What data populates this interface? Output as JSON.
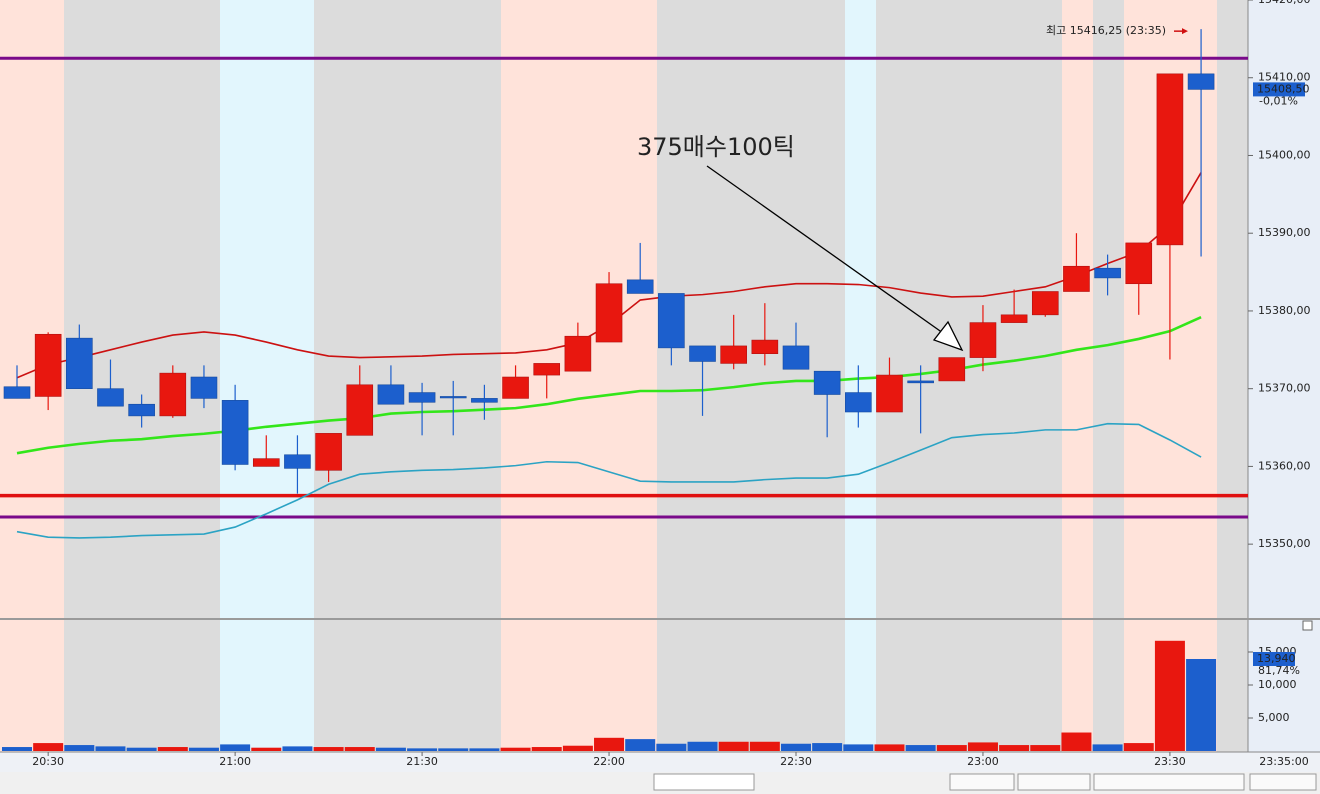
{
  "chart_data": [
    {
      "type": "candlestick",
      "categories": [
        null,
        "20:30",
        null,
        null,
        null,
        null,
        null,
        "21:00",
        null,
        null,
        null,
        null,
        null,
        "21:30",
        null,
        null,
        null,
        null,
        null,
        "22:00",
        null,
        null,
        null,
        null,
        null,
        "22:30",
        null,
        null,
        null,
        null,
        null,
        "23:00",
        null,
        null,
        null,
        null,
        null,
        "23:30",
        null
      ],
      "axis_end_label": "23:35:00",
      "open": [
        15370.25,
        15369,
        15376.5,
        15370,
        15368,
        15366.5,
        15371.5,
        15368.5,
        15360,
        15361.5,
        15359.5,
        15364,
        15370.5,
        15369.5,
        15369,
        15368.75,
        15368.75,
        15371.75,
        15372.25,
        15376,
        15384,
        15382.25,
        15375.5,
        15373.25,
        15374.5,
        15375.5,
        15372.25,
        15369.5,
        15367,
        15371,
        15371,
        15374,
        15378.5,
        15379.5,
        15382.5,
        15385.5,
        15383.5,
        15388.5,
        15410.5
      ],
      "high": [
        15373,
        15377.25,
        15378.25,
        15373.75,
        15369.25,
        15373,
        15373,
        15370.5,
        15364,
        15364,
        15364.25,
        15373,
        15373,
        15370.75,
        15371,
        15370.5,
        15373,
        15373.25,
        15378.5,
        15385,
        15388.75,
        15382.25,
        15375.5,
        15379.5,
        15381,
        15378.5,
        15372.25,
        15373,
        15374,
        15373,
        15374,
        15380.75,
        15382.75,
        15382.5,
        15390,
        15387.25,
        15388.75,
        15410.5,
        15416.25
      ],
      "low": [
        15368.75,
        15367.25,
        15370,
        15367.75,
        15365,
        15366.25,
        15367.5,
        15359.5,
        15360,
        15356.5,
        15358,
        15364,
        15368,
        15364,
        15364,
        15366,
        15368.75,
        15368.75,
        15372.25,
        15376,
        15382.25,
        15373,
        15366.5,
        15372.5,
        15373,
        15372.5,
        15363.75,
        15365,
        15367,
        15364.25,
        15371,
        15372.25,
        15378.5,
        15379.25,
        15382.5,
        15382,
        15379.5,
        15373.75,
        15387
      ],
      "close": [
        15368.75,
        15377,
        15370,
        15367.75,
        15366.5,
        15372,
        15368.75,
        15360.25,
        15361,
        15359.75,
        15364.25,
        15370.5,
        15368,
        15368.25,
        15369,
        15368.25,
        15371.5,
        15373.25,
        15376.75,
        15383.5,
        15382.25,
        15375.25,
        15373.5,
        15375.5,
        15376.25,
        15372.5,
        15369.25,
        15367,
        15371.75,
        15370.75,
        15374,
        15378.5,
        15379.5,
        15382.5,
        15385.75,
        15384.25,
        15388.75,
        15410.5,
        15408.5
      ],
      "up_color": "#e8170f",
      "down_color": "#1c5fcd",
      "series": [
        {
          "color": "#cc1111",
          "values": [
            15371.4,
            15373.1,
            15374.0,
            15375.0,
            15376.0,
            15376.9,
            15377.3,
            15376.9,
            15376.0,
            15375.0,
            15374.2,
            15374.0,
            15374.1,
            15374.2,
            15374.4,
            15374.5,
            15374.6,
            15375.0,
            15375.9,
            15378.2,
            15381.4,
            15381.9,
            15382.1,
            15382.5,
            15383.1,
            15383.5,
            15383.5,
            15383.4,
            15383.0,
            15382.3,
            15381.8,
            15381.9,
            15382.5,
            15383.1,
            15384.5,
            15386.1,
            15387.6,
            15391.0,
            15397.8
          ]
        },
        {
          "color": "#33e61a",
          "values": [
            15361.7,
            15362.4,
            15362.9,
            15363.3,
            15363.5,
            15363.9,
            15364.2,
            15364.6,
            15365.1,
            15365.5,
            15365.9,
            15366.2,
            15366.8,
            15367.0,
            15367.1,
            15367.3,
            15367.5,
            15368.0,
            15368.7,
            15369.2,
            15369.7,
            15369.7,
            15369.8,
            15370.2,
            15370.7,
            15371.0,
            15371.0,
            15371.3,
            15371.5,
            15371.9,
            15372.4,
            15373.1,
            15373.6,
            15374.2,
            15375.0,
            15375.6,
            15376.4,
            15377.4,
            15379.2
          ]
        },
        {
          "color": "#2ba3c4",
          "values": [
            15351.6,
            15350.9,
            15350.8,
            15350.9,
            15351.1,
            15351.2,
            15351.3,
            15352.2,
            15353.9,
            15355.7,
            15357.7,
            15359.0,
            15359.3,
            15359.5,
            15359.6,
            15359.8,
            15360.1,
            15360.6,
            15360.5,
            15359.3,
            15358.1,
            15358.0,
            15358.0,
            15358.0,
            15358.3,
            15358.5,
            15358.5,
            15359.0,
            15360.5,
            15362.1,
            15363.7,
            15364.1,
            15364.3,
            15364.7,
            15364.7,
            15365.5,
            15365.4,
            15363.4,
            15361.2
          ]
        }
      ],
      "hlines": [
        {
          "value": 15412.5,
          "color": "#7a0a8a"
        },
        {
          "value": 15356.25,
          "color": "#e01010"
        },
        {
          "value": 15353.5,
          "color": "#7a0a8a"
        }
      ],
      "ylim": [
        15340.5,
        15420
      ],
      "yticks": [
        {
          "value": 15350,
          "label": "15350,00"
        },
        {
          "value": 15360,
          "label": "15360,00"
        },
        {
          "value": 15370,
          "label": "15370,00"
        },
        {
          "value": 15380,
          "label": "15380,00"
        },
        {
          "value": 15390,
          "label": "15390,00"
        },
        {
          "value": 15400,
          "label": "15400,00"
        },
        {
          "value": 15410,
          "label": "15410,00"
        },
        {
          "value": 15420,
          "label": "15420,00"
        }
      ],
      "last_label": {
        "value": 15408.5,
        "label": "15408,50"
      },
      "change_label": "-0,01%",
      "max_annotation": "최고 15416,25 (23:35)",
      "annotation": "375매수100틱"
    },
    {
      "type": "bar",
      "values": [
        600,
        1200,
        900,
        700,
        500,
        600,
        500,
        1000,
        500,
        700,
        600,
        600,
        500,
        400,
        400,
        400,
        500,
        600,
        800,
        2000,
        1800,
        1100,
        1400,
        1400,
        1400,
        1100,
        1200,
        1000,
        1000,
        900,
        900,
        1300,
        900,
        900,
        2800,
        1000,
        1200,
        16700,
        13940
      ],
      "value_labels": [
        null,
        null,
        null,
        null,
        null,
        null,
        null,
        null,
        null,
        null,
        null,
        null,
        null,
        null,
        null,
        null,
        null,
        null,
        null,
        null,
        null,
        null,
        null,
        null,
        null,
        null,
        null,
        null,
        null,
        null,
        null,
        null,
        null,
        null,
        null,
        null,
        null,
        null,
        "13,940"
      ],
      "ylim": [
        0,
        19850
      ],
      "yticks": [
        {
          "value": 5000,
          "label": "5,000"
        },
        {
          "value": 10000,
          "label": "10,000"
        },
        {
          "value": 15000,
          "label": "15,000"
        }
      ],
      "ratio_label": "81,74%"
    }
  ]
}
